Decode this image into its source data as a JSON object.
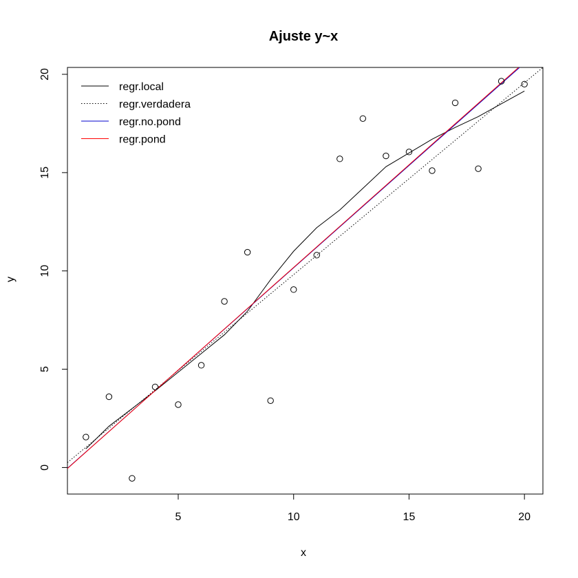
{
  "chart_data": {
    "type": "scatter",
    "title": "Ajuste y~x",
    "xlabel": "x",
    "ylabel": "y",
    "xlim": [
      0.2,
      20.8
    ],
    "ylim": [
      -1.35,
      20.35
    ],
    "xticks": [
      "5",
      "10",
      "15",
      "20"
    ],
    "yticks": [
      "0",
      "5",
      "10",
      "15",
      "20"
    ],
    "points": {
      "x": [
        1,
        2,
        3,
        4,
        5,
        6,
        7,
        8,
        9,
        10,
        11,
        12,
        13,
        14,
        15,
        16,
        17,
        18,
        19,
        20
      ],
      "y": [
        1.55,
        3.6,
        -0.55,
        4.1,
        3.2,
        5.2,
        8.45,
        10.95,
        3.4,
        9.05,
        10.8,
        15.7,
        17.75,
        15.85,
        16.05,
        15.1,
        18.55,
        15.2,
        19.65,
        19.5
      ]
    },
    "series": [
      {
        "name": "regr.local",
        "color": "#000000",
        "style": "solid",
        "x": [
          1,
          2,
          3,
          4,
          5,
          6,
          7,
          8,
          9,
          10,
          11,
          12,
          13,
          14,
          15,
          16,
          17,
          18,
          19,
          20
        ],
        "y": [
          0.95,
          2.1,
          3.0,
          3.9,
          4.85,
          5.8,
          6.75,
          7.95,
          9.55,
          11.0,
          12.2,
          13.1,
          14.2,
          15.3,
          16.0,
          16.7,
          17.3,
          17.85,
          18.5,
          19.15
        ]
      },
      {
        "name": "regr.verdadera",
        "color": "#000000",
        "style": "dotted",
        "x": [
          0.2,
          20.8
        ],
        "y": [
          0.25,
          20.35
        ]
      },
      {
        "name": "regr.no.pond",
        "color": "#0000cc",
        "style": "solid",
        "x": [
          0.2,
          20.8
        ],
        "y": [
          -0.04,
          21.4
        ]
      },
      {
        "name": "regr.pond",
        "color": "#ff0000",
        "style": "solid",
        "x": [
          0.2,
          20.8
        ],
        "y": [
          -0.05,
          21.45
        ]
      }
    ],
    "legend_position": "top-left",
    "grid": false
  }
}
